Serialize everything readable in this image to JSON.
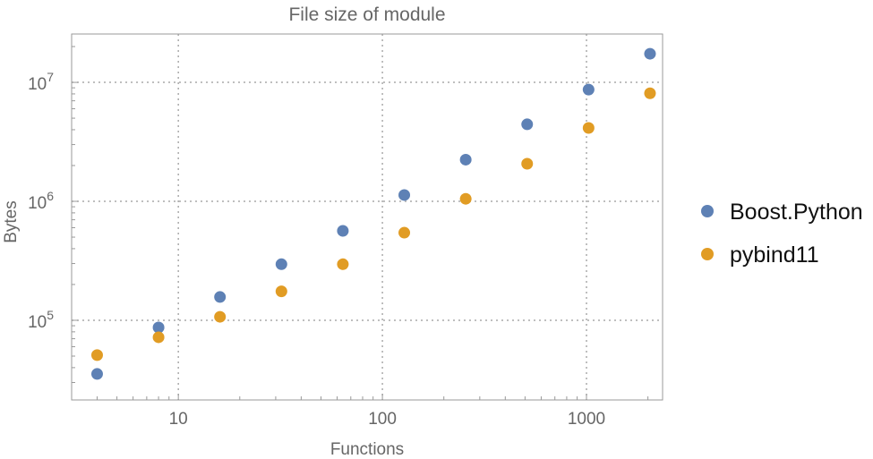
{
  "chart_data": {
    "type": "scatter",
    "title": "File size of module",
    "xlabel": "Functions",
    "ylabel": "Bytes",
    "xscale": "log",
    "yscale": "log",
    "xlim": [
      3,
      2360
    ],
    "ylim": [
      21400,
      25500000
    ],
    "grid": true,
    "legend_placement": "right",
    "x_ticks": [
      {
        "v": 10,
        "label": "10"
      },
      {
        "v": 100,
        "label": "100"
      },
      {
        "v": 1000,
        "label": "1000"
      }
    ],
    "y_ticks": [
      {
        "v": 100000,
        "base": "10",
        "exp": "5"
      },
      {
        "v": 1000000,
        "base": "10",
        "exp": "6"
      },
      {
        "v": 10000000,
        "base": "10",
        "exp": "7"
      }
    ],
    "x": [
      4,
      8,
      16,
      32,
      64,
      128,
      256,
      512,
      1024,
      2048
    ],
    "series": [
      {
        "name": "Boost.Python",
        "color": "#5E81B5",
        "values": [
          35400,
          87000,
          157000,
          296000,
          565000,
          1130000,
          2240000,
          4440000,
          8700000,
          17400000
        ]
      },
      {
        "name": "pybind11",
        "color": "#E19C24",
        "values": [
          51000,
          72000,
          107000,
          175000,
          296000,
          545000,
          1050000,
          2070000,
          4140000,
          8100000
        ]
      }
    ]
  }
}
